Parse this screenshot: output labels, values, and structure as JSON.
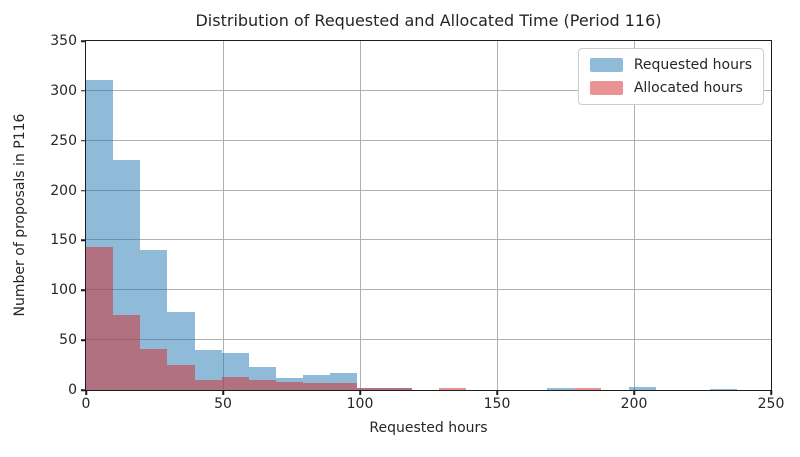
{
  "chart_data": {
    "type": "histogram",
    "title": "Distribution of Requested and Allocated Time (Period 116)",
    "xlabel": "Requested hours",
    "ylabel": "Number of proposals in P116",
    "xlim": [
      0,
      250
    ],
    "ylim": [
      0,
      350
    ],
    "xticks": [
      0,
      50,
      100,
      150,
      200,
      250
    ],
    "yticks": [
      0,
      50,
      100,
      150,
      200,
      250,
      300,
      350
    ],
    "grid": true,
    "legend_position": "upper right",
    "bin_width": 9.9,
    "bin_starts": [
      0,
      9.9,
      19.8,
      29.7,
      39.6,
      49.5,
      59.4,
      69.3,
      79.2,
      89.1,
      99.0,
      108.9,
      118.8,
      128.7,
      138.6,
      148.5,
      158.4,
      168.3,
      178.2,
      188.1,
      198.0,
      207.9,
      217.8,
      227.7,
      237.6
    ],
    "series": [
      {
        "name": "Requested hours",
        "color": "rgba(31,119,180,0.5)",
        "values": [
          311,
          231,
          140,
          78,
          40,
          37,
          23,
          12,
          15,
          17,
          2,
          2,
          0,
          0,
          0,
          0,
          0,
          2,
          0,
          0,
          3,
          0,
          0,
          1,
          0
        ]
      },
      {
        "name": "Allocated hours",
        "color": "rgba(214,39,40,0.5)",
        "values": [
          143,
          75,
          41,
          25,
          10,
          13,
          10,
          8,
          7,
          7,
          2,
          2,
          0,
          2,
          0,
          0,
          0,
          0,
          2,
          0,
          0,
          0,
          0,
          0,
          0
        ]
      }
    ],
    "colors": {
      "grid": "#b0b0b0",
      "spine": "#1c1c1c",
      "requested_fill_on_white": "#8fbbd9",
      "allocated_fill_on_white": "#ea9393",
      "overlap_fill": "#b27080"
    }
  }
}
